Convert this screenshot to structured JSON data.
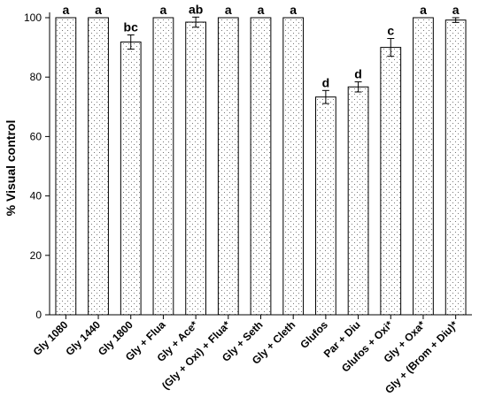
{
  "chart_data": {
    "type": "bar",
    "title": "",
    "xlabel": "",
    "ylabel": "% Visual control",
    "ylim": [
      0,
      100
    ],
    "yticks": [
      0,
      20,
      40,
      60,
      80,
      100
    ],
    "grid": false,
    "bar_fill": "dotted",
    "colors": {
      "bar_fill": "#ffffff",
      "dots": "#555555",
      "outline": "#000000"
    },
    "categories": [
      "Gly 1080",
      "Gly 1440",
      "Gly 1800",
      "Gly + Flua",
      "Gly + Ace*",
      "(Gly + Oxi) + Flua*",
      "Gly + Seth",
      "Gly + Cleth",
      "Glufos",
      "Par + Diu",
      "Glufos + Oxi*",
      "Gly + Oxa*",
      "Gly + (Brom + Diu)*"
    ],
    "values": [
      100,
      100,
      91.8,
      100,
      98.5,
      100,
      100,
      100,
      73.3,
      76.7,
      90,
      100,
      99.2
    ],
    "errors": [
      0,
      0,
      2.4,
      0,
      1.7,
      0,
      0,
      0,
      2.2,
      1.7,
      3,
      0,
      0.8
    ],
    "significance": [
      "a",
      "a",
      "bc",
      "a",
      "ab",
      "a",
      "a",
      "a",
      "d",
      "d",
      "c",
      "a",
      "a"
    ]
  }
}
